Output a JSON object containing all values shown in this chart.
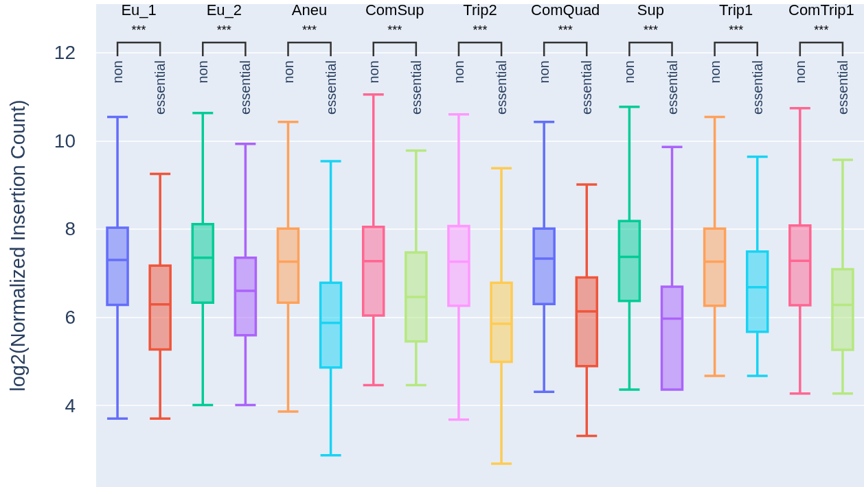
{
  "chart_data": {
    "type": "box",
    "ylabel": "log2(Normalized Insertion Count)",
    "categories": [
      "non",
      "essential",
      "non",
      "essential",
      "non",
      "essential",
      "non",
      "essential",
      "non",
      "essential",
      "non",
      "essential",
      "non",
      "essential",
      "non",
      "essential",
      "non",
      "essential"
    ],
    "boxes": [
      {
        "low": 3.7,
        "q1": 6.28,
        "median": 7.3,
        "q3": 8.03,
        "high": 10.54
      },
      {
        "low": 3.7,
        "q1": 5.27,
        "median": 6.29,
        "q3": 7.17,
        "high": 9.25
      },
      {
        "low": 4.01,
        "q1": 6.33,
        "median": 7.35,
        "q3": 8.11,
        "high": 10.63
      },
      {
        "low": 4.01,
        "q1": 5.59,
        "median": 6.6,
        "q3": 7.35,
        "high": 9.93
      },
      {
        "low": 3.86,
        "q1": 6.33,
        "median": 7.26,
        "q3": 8.01,
        "high": 10.43
      },
      {
        "low": 2.87,
        "q1": 4.86,
        "median": 5.87,
        "q3": 6.78,
        "high": 9.54
      },
      {
        "low": 4.46,
        "q1": 6.04,
        "median": 7.27,
        "q3": 8.05,
        "high": 11.05
      },
      {
        "low": 4.46,
        "q1": 5.45,
        "median": 6.46,
        "q3": 7.47,
        "high": 9.78
      },
      {
        "low": 3.68,
        "q1": 6.26,
        "median": 7.26,
        "q3": 8.07,
        "high": 10.6
      },
      {
        "low": 2.68,
        "q1": 4.99,
        "median": 5.85,
        "q3": 6.78,
        "high": 9.38
      },
      {
        "low": 4.31,
        "q1": 6.3,
        "median": 7.33,
        "q3": 8.01,
        "high": 10.43
      },
      {
        "low": 3.31,
        "q1": 4.89,
        "median": 6.13,
        "q3": 6.9,
        "high": 9.01
      },
      {
        "low": 4.36,
        "q1": 6.37,
        "median": 7.37,
        "q3": 8.18,
        "high": 10.77
      },
      {
        "low": 4.36,
        "q1": 4.36,
        "median": 5.97,
        "q3": 6.69,
        "high": 9.86
      },
      {
        "low": 4.67,
        "q1": 6.26,
        "median": 7.26,
        "q3": 8.01,
        "high": 10.54
      },
      {
        "low": 4.67,
        "q1": 5.67,
        "median": 6.68,
        "q3": 7.49,
        "high": 9.64
      },
      {
        "low": 4.27,
        "q1": 6.27,
        "median": 7.28,
        "q3": 8.08,
        "high": 10.74
      },
      {
        "low": 4.27,
        "q1": 5.26,
        "median": 6.28,
        "q3": 7.09,
        "high": 9.57
      }
    ],
    "colors": [
      "#636efa",
      "#ef553b",
      "#00cc96",
      "#ab63fa",
      "#ffa15a",
      "#19d3f3",
      "#ff6692",
      "#b6e880",
      "#ff97ff",
      "#fecb52",
      "#636efa",
      "#ef553b",
      "#00cc96",
      "#ab63fa",
      "#ffa15a",
      "#19d3f3",
      "#ff6692",
      "#b6e880"
    ],
    "ylim": [
      2.15,
      13.1
    ],
    "yticks": [
      4,
      6,
      8,
      10,
      12
    ],
    "grid": "y",
    "annotations": [
      "Eu_1",
      "***",
      "Eu_2",
      "***",
      "Aneu",
      "***",
      "ComSup",
      "***",
      "Trip2",
      "***",
      "ComQuad",
      "***",
      "Sup",
      "***",
      "Trip1",
      "***",
      "ComTrip1",
      "***"
    ]
  }
}
